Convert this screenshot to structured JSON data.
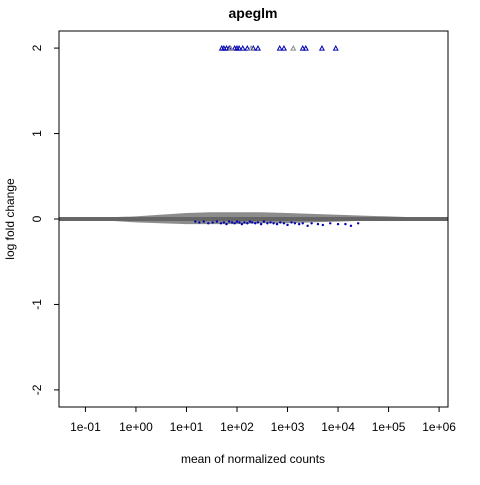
{
  "chart_data": {
    "type": "scatter",
    "title": "apeglm",
    "xlabel": "mean of normalized counts",
    "ylabel": "log fold change",
    "x_scale": "log10",
    "xlim": [
      0.03,
      1500000
    ],
    "ylim": [
      -2.2,
      2.2
    ],
    "x_ticks": [
      0.1,
      1,
      10,
      100,
      1000,
      10000,
      100000,
      1000000
    ],
    "x_tick_labels": [
      "1e-01",
      "1e+00",
      "1e+01",
      "1e+02",
      "1e+03",
      "1e+04",
      "1e+05",
      "1e+06"
    ],
    "y_ticks": [
      -2,
      -1,
      0,
      1,
      2
    ],
    "y_tick_labels": [
      "-2",
      "-1",
      "0",
      "1",
      "2"
    ],
    "reference_line": {
      "y": 0,
      "color": "#666666"
    },
    "grid": false,
    "legend": "none",
    "colors": {
      "not_significant": "#8c8c8c",
      "significant": "#0000b4",
      "axis": "#000000"
    },
    "series": [
      {
        "role": "not significant (grey band)",
        "color": "#8c8c8c",
        "envelope": {
          "x": [
            0.03,
            0.3,
            1,
            3,
            10,
            30,
            100,
            300,
            1000,
            3000,
            10000,
            30000,
            100000,
            300000,
            1000000
          ],
          "y_upper": [
            0.01,
            0.02,
            0.03,
            0.05,
            0.07,
            0.08,
            0.08,
            0.08,
            0.07,
            0.06,
            0.05,
            0.04,
            0.03,
            0.02,
            0.01
          ],
          "y_lower": [
            -0.01,
            -0.02,
            -0.04,
            -0.05,
            -0.06,
            -0.06,
            -0.06,
            -0.05,
            -0.05,
            -0.04,
            -0.03,
            -0.02,
            -0.02,
            -0.01,
            -0.01
          ]
        }
      },
      {
        "role": "significant",
        "color": "#0000b4",
        "points_x": [
          15,
          18,
          22,
          27,
          33,
          40,
          48,
          55,
          62,
          70,
          80,
          90,
          100,
          112,
          125,
          140,
          160,
          180,
          200,
          230,
          260,
          300,
          340,
          400,
          460,
          530,
          620,
          720,
          850,
          1000,
          1200,
          1400,
          1700,
          2000,
          2500,
          3000,
          4000,
          5000,
          7000,
          10000,
          14000,
          18000,
          25000
        ],
        "points_y": [
          -0.03,
          -0.04,
          -0.03,
          -0.05,
          -0.04,
          -0.03,
          -0.05,
          -0.04,
          -0.06,
          -0.03,
          -0.04,
          -0.05,
          -0.03,
          -0.04,
          -0.06,
          -0.04,
          -0.05,
          -0.03,
          -0.04,
          -0.05,
          -0.04,
          -0.06,
          -0.03,
          -0.05,
          -0.04,
          -0.05,
          -0.06,
          -0.04,
          -0.05,
          -0.07,
          -0.04,
          -0.05,
          -0.06,
          -0.05,
          -0.08,
          -0.05,
          -0.06,
          -0.07,
          -0.05,
          -0.06,
          -0.06,
          -0.08,
          -0.05
        ]
      },
      {
        "role": "significant, out of range (triangles at top)",
        "marker": "triangle",
        "color": "#0000b4",
        "y": 2,
        "x": [
          50,
          55,
          62,
          70,
          90,
          100,
          110,
          130,
          160,
          210,
          260,
          700,
          850,
          2000,
          2300,
          4800,
          9000
        ]
      },
      {
        "role": "not significant, out of range (triangles at top)",
        "marker": "triangle",
        "color": "#8c8c8c",
        "y": 2,
        "x": [
          75,
          190,
          1300
        ]
      }
    ]
  }
}
